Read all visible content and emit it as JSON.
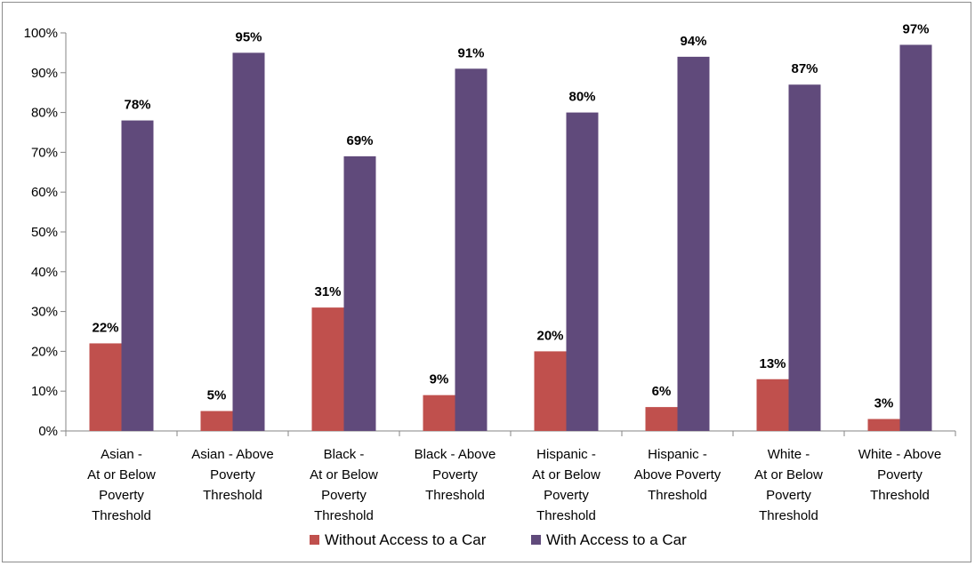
{
  "chart_data": {
    "type": "bar",
    "categories": [
      [
        "Asian -",
        "At or Below",
        "Poverty",
        "Threshold"
      ],
      [
        "Asian - Above",
        "Poverty",
        "Threshold"
      ],
      [
        "Black -",
        "At or Below",
        "Poverty",
        "Threshold"
      ],
      [
        "Black - Above",
        "Poverty",
        "Threshold"
      ],
      [
        "Hispanic -",
        "At or Below",
        "Poverty",
        "Threshold"
      ],
      [
        "Hispanic -",
        "Above Poverty",
        "Threshold"
      ],
      [
        "White -",
        "At or Below",
        "Poverty",
        "Threshold"
      ],
      [
        "White - Above",
        "Poverty",
        "Threshold"
      ]
    ],
    "series": [
      {
        "name": "Without Access to a Car",
        "color": "#C0504D",
        "values": [
          22,
          5,
          31,
          9,
          20,
          6,
          13,
          3
        ],
        "labels": [
          "22%",
          "5%",
          "31%",
          "9%",
          "20%",
          "6%",
          "13%",
          "3%"
        ]
      },
      {
        "name": "With Access to a Car",
        "color": "#604A7B",
        "values": [
          78,
          95,
          69,
          91,
          80,
          94,
          87,
          97
        ],
        "labels": [
          "78%",
          "95%",
          "69%",
          "91%",
          "80%",
          "94%",
          "87%",
          "97%"
        ]
      }
    ],
    "ylim": [
      0,
      100
    ],
    "yticks": [
      0,
      10,
      20,
      30,
      40,
      50,
      60,
      70,
      80,
      90,
      100
    ],
    "ytick_labels": [
      "0%",
      "10%",
      "20%",
      "30%",
      "40%",
      "50%",
      "60%",
      "70%",
      "80%",
      "90%",
      "100%"
    ],
    "grid": false,
    "legend": "bottom",
    "title": "",
    "xlabel": "",
    "ylabel": ""
  }
}
